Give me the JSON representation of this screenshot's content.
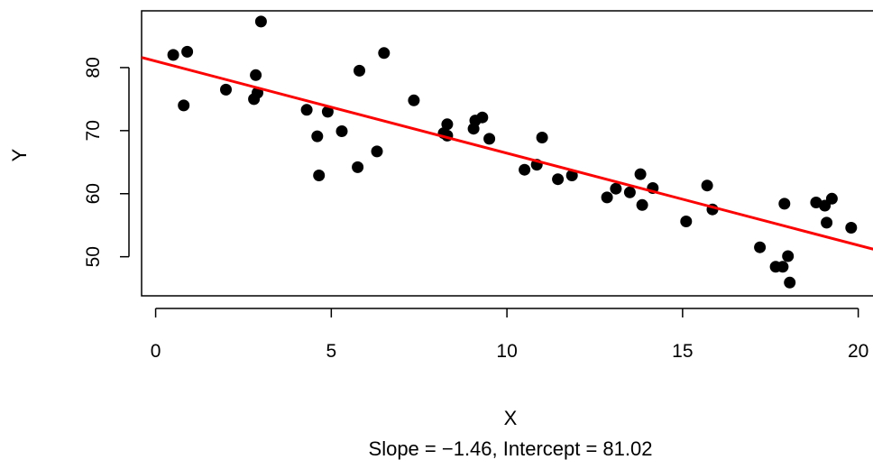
{
  "chart_data": {
    "type": "scatter",
    "title": "",
    "xlabel": "X",
    "ylabel": "Y",
    "subtitle": "Slope = −1.46, Intercept = 81.02",
    "xlim": [
      -0.4,
      20.6
    ],
    "ylim": [
      43.8,
      89.0
    ],
    "x_ticks": [
      0,
      5,
      10,
      15,
      20
    ],
    "y_ticks": [
      50,
      60,
      70,
      80
    ],
    "grid": false,
    "legend": "none",
    "point_color": "#000000",
    "line_color": "#ff0000",
    "regression": {
      "slope": -1.46,
      "intercept": 81.02
    },
    "points": [
      {
        "x": 0.5,
        "y": 82.0
      },
      {
        "x": 0.8,
        "y": 74.0
      },
      {
        "x": 0.9,
        "y": 82.5
      },
      {
        "x": 2.0,
        "y": 76.5
      },
      {
        "x": 2.8,
        "y": 75.0
      },
      {
        "x": 2.85,
        "y": 78.8
      },
      {
        "x": 2.9,
        "y": 76.0
      },
      {
        "x": 3.0,
        "y": 87.3
      },
      {
        "x": 4.3,
        "y": 73.3
      },
      {
        "x": 4.6,
        "y": 69.1
      },
      {
        "x": 4.65,
        "y": 62.9
      },
      {
        "x": 4.9,
        "y": 73.0
      },
      {
        "x": 5.3,
        "y": 69.9
      },
      {
        "x": 5.75,
        "y": 64.2
      },
      {
        "x": 5.8,
        "y": 79.5
      },
      {
        "x": 6.3,
        "y": 66.7
      },
      {
        "x": 6.5,
        "y": 82.3
      },
      {
        "x": 7.35,
        "y": 74.8
      },
      {
        "x": 8.2,
        "y": 69.6
      },
      {
        "x": 8.3,
        "y": 69.2
      },
      {
        "x": 8.3,
        "y": 71.0
      },
      {
        "x": 9.05,
        "y": 70.3
      },
      {
        "x": 9.1,
        "y": 71.6
      },
      {
        "x": 9.3,
        "y": 72.1
      },
      {
        "x": 9.5,
        "y": 68.7
      },
      {
        "x": 10.5,
        "y": 63.8
      },
      {
        "x": 10.85,
        "y": 64.6
      },
      {
        "x": 11.0,
        "y": 68.9
      },
      {
        "x": 11.45,
        "y": 62.3
      },
      {
        "x": 11.85,
        "y": 62.9
      },
      {
        "x": 12.85,
        "y": 59.4
      },
      {
        "x": 13.1,
        "y": 60.8
      },
      {
        "x": 13.5,
        "y": 60.2
      },
      {
        "x": 13.8,
        "y": 63.1
      },
      {
        "x": 13.85,
        "y": 58.2
      },
      {
        "x": 14.15,
        "y": 60.9
      },
      {
        "x": 15.1,
        "y": 55.6
      },
      {
        "x": 15.7,
        "y": 61.3
      },
      {
        "x": 15.85,
        "y": 57.5
      },
      {
        "x": 17.2,
        "y": 51.5
      },
      {
        "x": 17.65,
        "y": 48.4
      },
      {
        "x": 17.85,
        "y": 48.4
      },
      {
        "x": 17.9,
        "y": 58.4
      },
      {
        "x": 18.0,
        "y": 50.1
      },
      {
        "x": 18.05,
        "y": 45.9
      },
      {
        "x": 18.8,
        "y": 58.6
      },
      {
        "x": 19.05,
        "y": 58.1
      },
      {
        "x": 19.1,
        "y": 55.4
      },
      {
        "x": 19.25,
        "y": 59.2
      },
      {
        "x": 19.8,
        "y": 54.6
      }
    ]
  }
}
